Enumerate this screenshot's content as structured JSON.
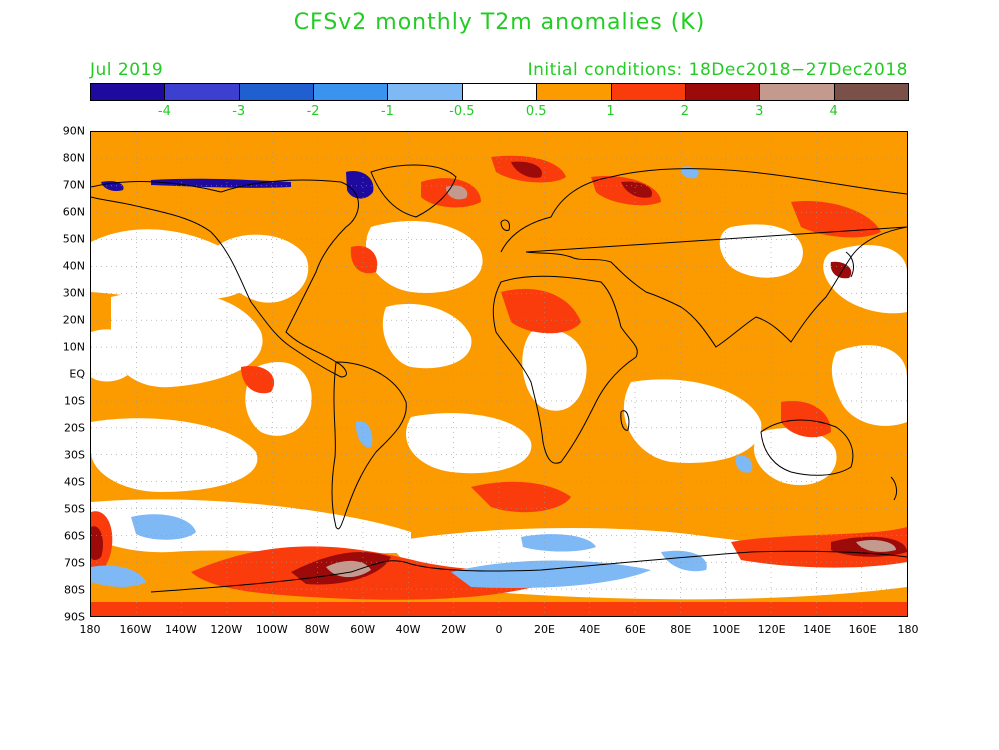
{
  "title": "CFSv2 monthly T2m anomalies (K)",
  "subtitle_left": "Jul 2019",
  "subtitle_right": "Initial conditions: 18Dec2018−27Dec2018",
  "colorbar": {
    "colors": [
      "#1e0a9e",
      "#3d3fd1",
      "#1f5fd0",
      "#3a93ef",
      "#7eb8f5",
      "#ffffff",
      "#fb9b00",
      "#fa3c0c",
      "#9c0a0a",
      "#c49a8f",
      "#7a5048"
    ],
    "labels": [
      "-4",
      "-3",
      "-2",
      "-1",
      "-0.5",
      "0.5",
      "1",
      "2",
      "3",
      "4"
    ]
  },
  "lat_labels": [
    "90N",
    "80N",
    "70N",
    "60N",
    "50N",
    "40N",
    "30N",
    "20N",
    "10N",
    "EQ",
    "10S",
    "20S",
    "30S",
    "40S",
    "50S",
    "60S",
    "70S",
    "80S",
    "90S"
  ],
  "lon_labels": [
    "180",
    "160W",
    "140W",
    "120W",
    "100W",
    "80W",
    "60W",
    "40W",
    "20W",
    "0",
    "20E",
    "40E",
    "60E",
    "80E",
    "100E",
    "120E",
    "140E",
    "160E",
    "180"
  ],
  "map_layers": {
    "fill_orange": "#fb9b00",
    "ocean_white": "#ffffff",
    "red": "#fa3c0c",
    "dark_red": "#9c0a0a",
    "pinkish_brown": "#c49a8f",
    "light_blue": "#7eb8f5",
    "blue": "#3a93ef",
    "dark_blue": "#1e0a9e",
    "coast": "#000000",
    "grid": "#999999"
  }
}
